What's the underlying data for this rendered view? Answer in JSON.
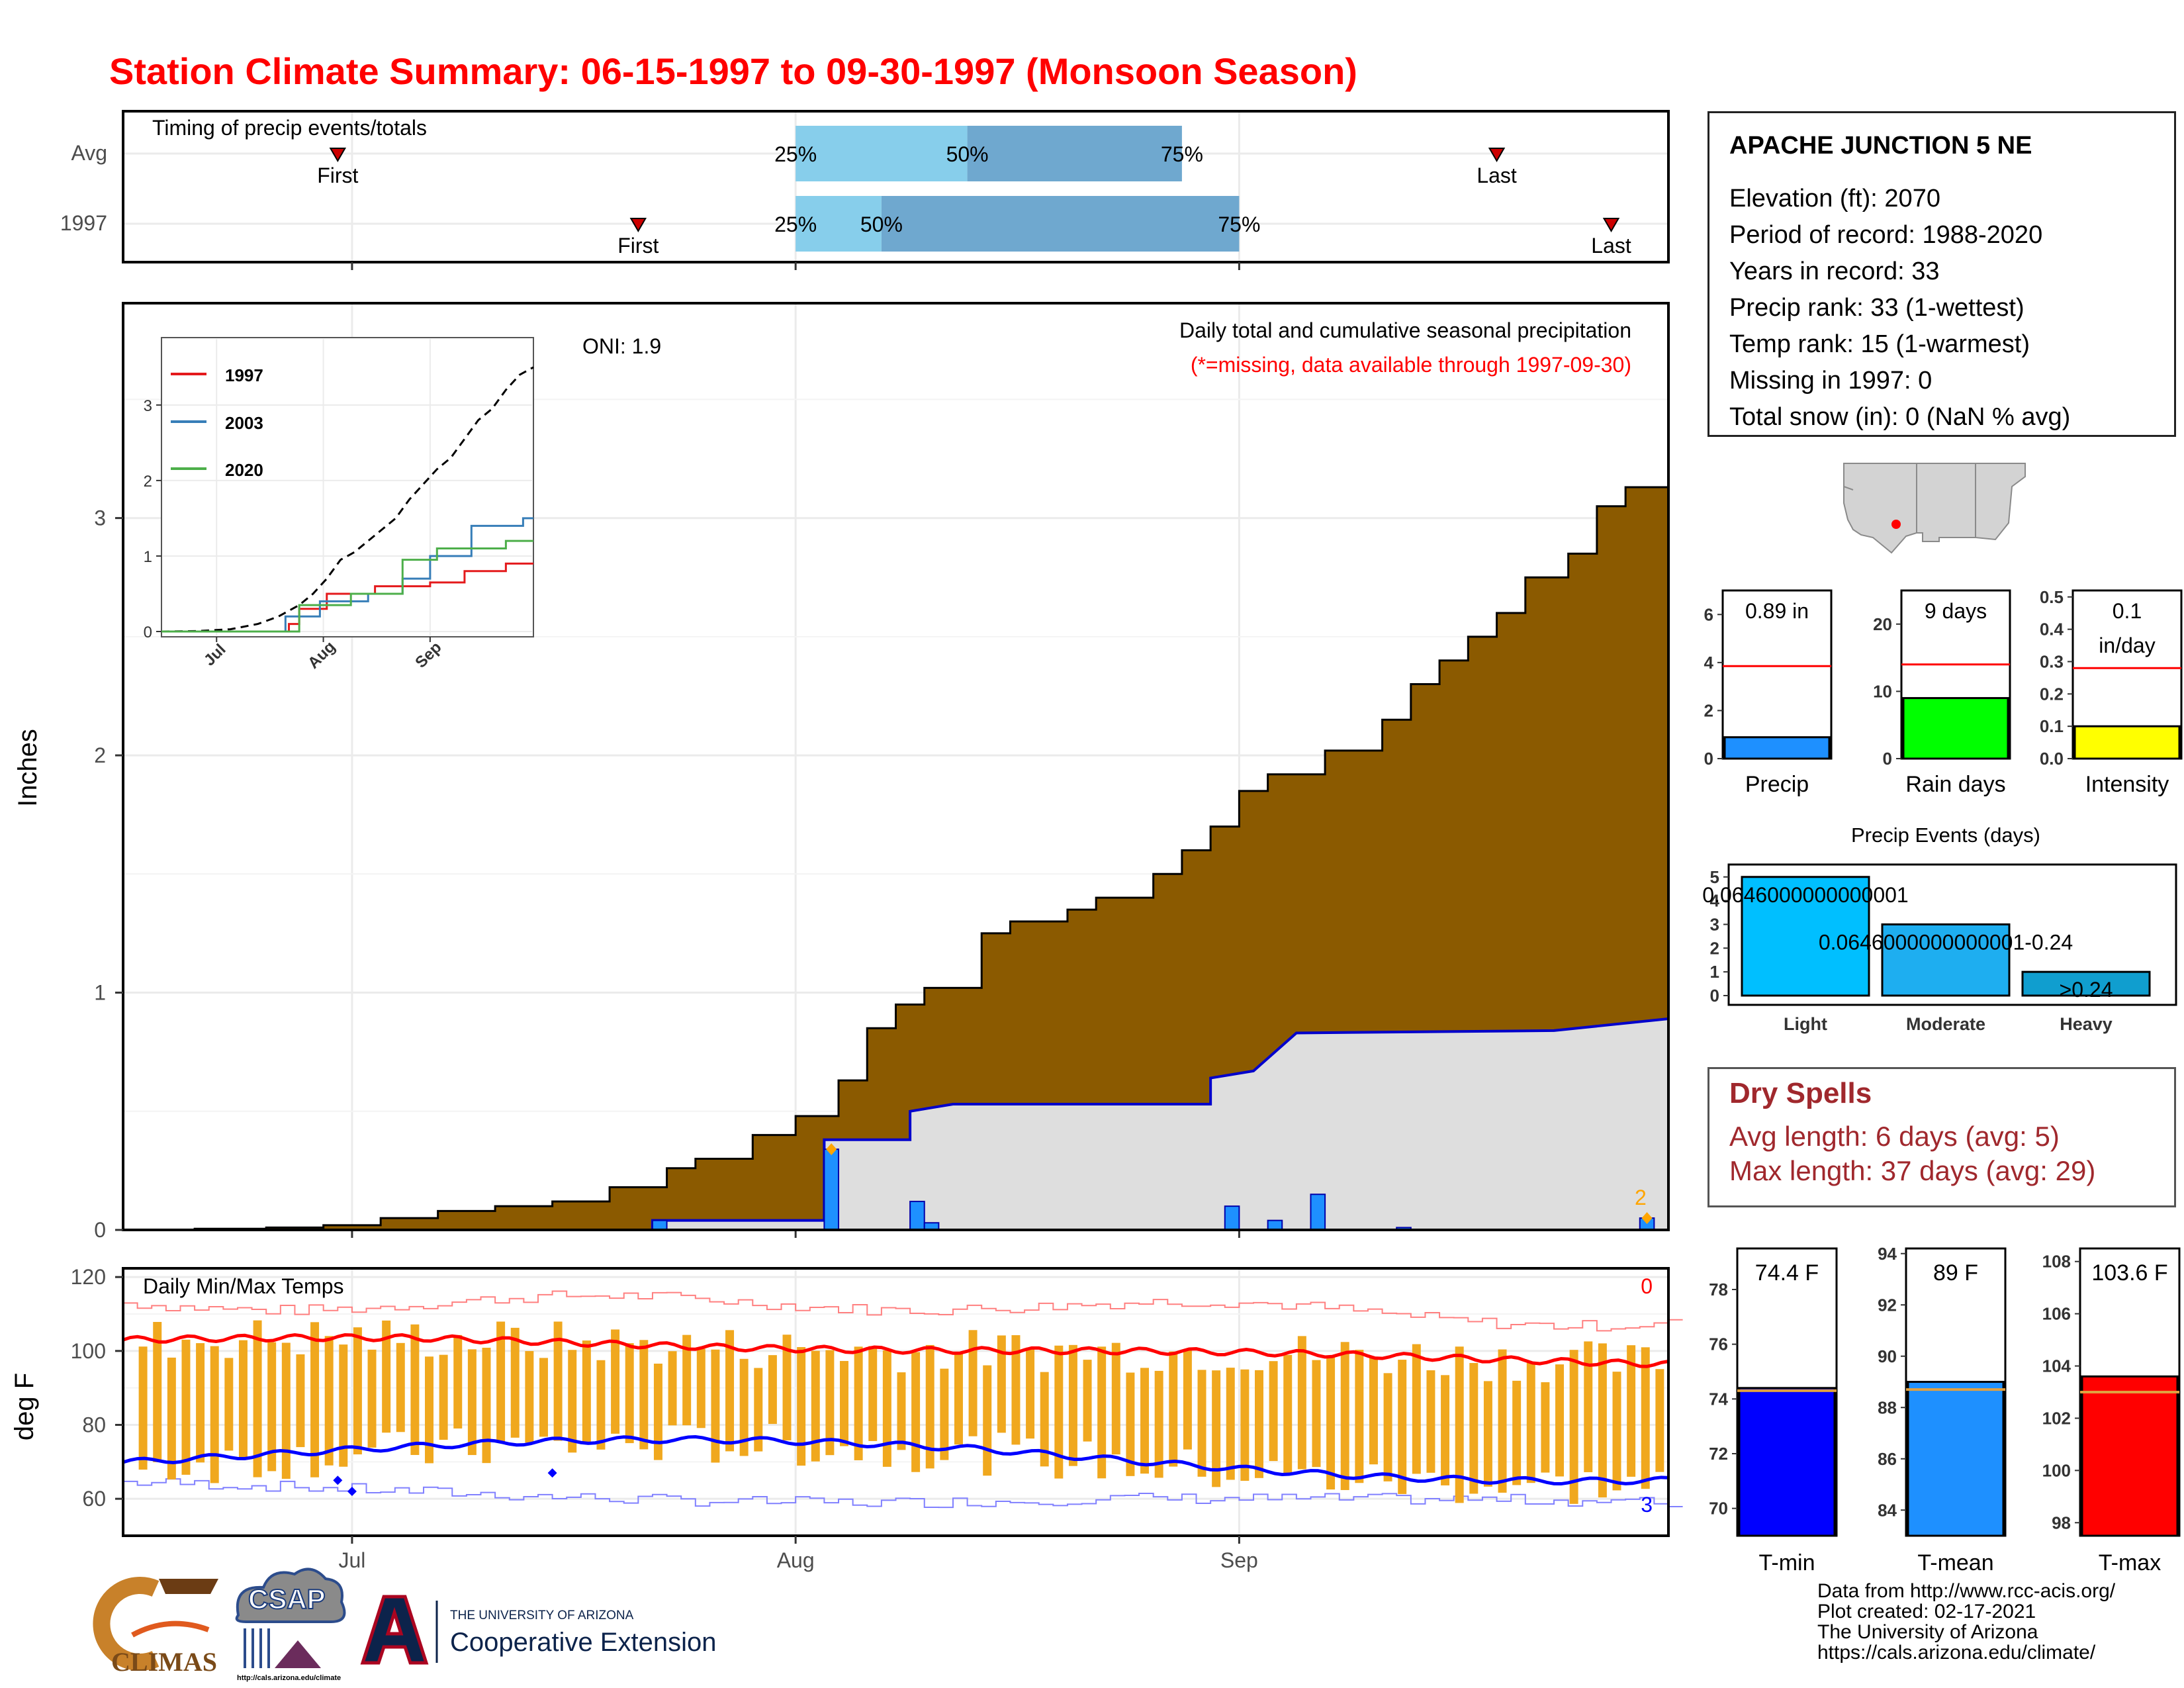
{
  "title": "Station Climate Summary: 06-15-1997 to 09-30-1997 (Monsoon Season)",
  "colors": {
    "title": "#ff0000",
    "cumulative_fill": "#8b5a00",
    "avg_band": "#dedede",
    "daily_bars": "#1e90ff",
    "tmax_avg": "#ff0000",
    "tmin_avg": "#0000ff",
    "temp_bars": "#f0a81e",
    "precip_bar": "#1e90ff",
    "raindays_bar": "#00ff00",
    "intensity_bar": "#ffff00",
    "tmin_bar": "#0000ff",
    "tmean_bar": "#1e90ff",
    "tmax_bar": "#ff0000",
    "events_bar_light": "#00bfff",
    "events_bar_moderate": "#1eaef0",
    "events_bar_heavy": "#109ecf",
    "dry_spell_text": "#a0282d"
  },
  "timing_panel": {
    "title": "Timing of precip events/totals",
    "row_labels": [
      "Avg",
      "1997"
    ],
    "first_label": "First",
    "last_label": "Last",
    "quantile_labels": [
      "25%",
      "50%",
      "75%"
    ],
    "rows": [
      {
        "name": "Avg",
        "first": "06-30",
        "last": "09-19",
        "q25": "08-01",
        "q50": "08-13",
        "q75": "08-28"
      },
      {
        "name": "1997",
        "first": "07-21",
        "last": "09-27",
        "q25": "08-01",
        "q50": "08-07",
        "q75": "09-01"
      }
    ]
  },
  "precip_panel": {
    "title": "Daily total and cumulative seasonal precipitation",
    "note": "(*=missing, data available through 1997-09-30)",
    "oni": "ONI: 1.9",
    "ylabel": "Inches",
    "y_ticks": [
      "0",
      "1",
      "2",
      "3"
    ],
    "ylim": [
      0,
      3.9
    ],
    "outlier_label": "2"
  },
  "temp_panel": {
    "title": "Daily Min/Max Temps",
    "ylabel": "deg F",
    "y_ticks": [
      "60",
      "80",
      "100",
      "120"
    ],
    "ylim": [
      50,
      122
    ],
    "x_ticks": [
      "Jul",
      "Aug",
      "Sep"
    ],
    "record_high_count": "0",
    "record_low_count": "3"
  },
  "inset": {
    "legend": [
      "1997",
      "2003",
      "2020"
    ],
    "legend_colors": [
      "#e41a1c",
      "#377eb8",
      "#4daf4a"
    ],
    "y_ticks": [
      "0",
      "1",
      "2",
      "3"
    ],
    "x_ticks": [
      "Jul",
      "Aug",
      "Sep"
    ]
  },
  "station": {
    "name": "APACHE JUNCTION 5 NE",
    "lines": [
      "Elevation (ft): 2070",
      "Period of record: 1988-2020",
      "Years in record: 33",
      "Precip rank: 33 (1-wettest)",
      "Temp rank: 15 (1-warmest)",
      "Missing in 1997: 0",
      "Total snow (in): 0 (NaN % avg)"
    ]
  },
  "summary_bars": {
    "precip": {
      "label": "Precip",
      "value_text": "0.89 in",
      "value": 0.89,
      "avg": 3.85,
      "ylim": [
        0,
        7
      ],
      "ticks": [
        "0",
        "2",
        "4",
        "6"
      ]
    },
    "rain_days": {
      "label": "Rain days",
      "value_text": "9 days",
      "value": 9,
      "avg": 14,
      "ylim": [
        0,
        25
      ],
      "ticks": [
        "0",
        "10",
        "20"
      ]
    },
    "intensity": {
      "label": "Intensity",
      "value_text_1": "0.1",
      "value_text_2": "in/day",
      "value": 0.1,
      "avg": 0.28,
      "ylim": [
        0,
        0.52
      ],
      "ticks": [
        "0.0",
        "0.1",
        "0.2",
        "0.3",
        "0.4",
        "0.5"
      ]
    }
  },
  "precip_events": {
    "title": "Precip Events (days)",
    "categories": [
      "Light",
      "Moderate",
      "Heavy"
    ],
    "values": [
      5,
      3,
      1
    ],
    "bar_labels": [
      "0.0646000000000001",
      "0.0646000000000001-0.24",
      ">0.24"
    ],
    "ticks": [
      "0",
      "1",
      "2",
      "3",
      "4",
      "5"
    ]
  },
  "dry_spells": {
    "title": "Dry Spells",
    "avg_length": "Avg length: 6 days (avg: 5)",
    "max_length": "Max length: 37 days (avg: 29)"
  },
  "temp_bars": {
    "tmin": {
      "label": "T-min",
      "value_text": "74.4 F",
      "value": 74.4,
      "avg": 74.3,
      "ylim": [
        69,
        79.5
      ],
      "ticks": [
        "70",
        "72",
        "74",
        "76",
        "78"
      ]
    },
    "tmean": {
      "label": "T-mean",
      "value_text": "89 F",
      "value": 89.0,
      "avg": 88.7,
      "ylim": [
        83,
        94.2
      ],
      "ticks": [
        "84",
        "86",
        "88",
        "90",
        "92",
        "94"
      ]
    },
    "tmax": {
      "label": "T-max",
      "value_text": "103.6 F",
      "value": 103.6,
      "avg": 103.0,
      "ylim": [
        97.5,
        108.5
      ],
      "ticks": [
        "98",
        "100",
        "102",
        "104",
        "106",
        "108"
      ]
    }
  },
  "logos": {
    "climas": "CLIMAS",
    "csap": "CSAP",
    "csap_url": "http://cals.arizona.edu/climate",
    "ua_small": "THE UNIVERSITY OF ARIZONA",
    "ua_big": "Cooperative Extension"
  },
  "credits": [
    "Data from http://www.rcc-acis.org/",
    "Plot created: 02-17-2021",
    "The University of Arizona",
    "https://cals.arizona.edu/climate/"
  ],
  "chart_data": [
    {
      "type": "area",
      "title": "Daily total and cumulative seasonal precipitation",
      "ylabel": "Inches",
      "ylim": [
        0,
        3.9
      ],
      "x_range": [
        "06-15",
        "09-30"
      ],
      "series": [
        {
          "name": "cumulative average",
          "step_points": [
            [
              0,
              0
            ],
            [
              5,
              0.005
            ],
            [
              10,
              0.01
            ],
            [
              14,
              0.02
            ],
            [
              18,
              0.05
            ],
            [
              22,
              0.08
            ],
            [
              26,
              0.1
            ],
            [
              30,
              0.12
            ],
            [
              34,
              0.18
            ],
            [
              38,
              0.26
            ],
            [
              40,
              0.3
            ],
            [
              44,
              0.4
            ],
            [
              47,
              0.48
            ],
            [
              50,
              0.63
            ],
            [
              52,
              0.85
            ],
            [
              54,
              0.95
            ],
            [
              56,
              1.02
            ],
            [
              60,
              1.25
            ],
            [
              62,
              1.3
            ],
            [
              66,
              1.35
            ],
            [
              68,
              1.4
            ],
            [
              72,
              1.5
            ],
            [
              74,
              1.6
            ],
            [
              76,
              1.7
            ],
            [
              78,
              1.85
            ],
            [
              80,
              1.92
            ],
            [
              84,
              2.02
            ],
            [
              88,
              2.15
            ],
            [
              90,
              2.3
            ],
            [
              92,
              2.4
            ],
            [
              94,
              2.5
            ],
            [
              96,
              2.6
            ],
            [
              98,
              2.75
            ],
            [
              101,
              2.85
            ],
            [
              103,
              3.05
            ],
            [
              105,
              3.13
            ],
            [
              109,
              3.2
            ],
            [
              112,
              3.25
            ],
            [
              114,
              3.34
            ],
            [
              119,
              3.4
            ],
            [
              122,
              3.5
            ],
            [
              126,
              3.52
            ],
            [
              128,
              3.64
            ],
            [
              131,
              3.64
            ]
          ]
        },
        {
          "name": "1997 cumulative",
          "step_points": [
            [
              0,
              0
            ],
            [
              37,
              0
            ],
            [
              37,
              0.04
            ],
            [
              49,
              0.04
            ],
            [
              49,
              0.38
            ],
            [
              55,
              0.38
            ],
            [
              55,
              0.5
            ],
            [
              58,
              0.53
            ],
            [
              76,
              0.53
            ],
            [
              76,
              0.64
            ],
            [
              79,
              0.67
            ],
            [
              82,
              0.83
            ],
            [
              100,
              0.84
            ],
            [
              130,
              0.89
            ]
          ]
        }
      ],
      "daily_precip_1997": [
        [
          "07-22",
          0.04
        ],
        [
          "08-03",
          0.34
        ],
        [
          "08-09",
          0.12
        ],
        [
          "08-10",
          0.03
        ],
        [
          "08-31",
          0.1
        ],
        [
          "09-03",
          0.04
        ],
        [
          "09-06",
          0.15
        ],
        [
          "09-12",
          0.01
        ],
        [
          "09-29",
          0.05
        ]
      ]
    },
    {
      "type": "line",
      "title": "Daily Min/Max Temps",
      "ylabel": "deg F",
      "ylim": [
        50,
        122
      ],
      "series": [
        {
          "name": "average max",
          "range": [
            103,
            97
          ]
        },
        {
          "name": "average min",
          "range": [
            72,
            67
          ]
        },
        {
          "name": "1997 daily range",
          "typical": [
            68,
            104
          ]
        }
      ]
    },
    {
      "type": "line",
      "title": "inset cumulative precipitation",
      "series": [
        {
          "name": "1997",
          "final": 0.89
        },
        {
          "name": "2003",
          "final": 1.4
        },
        {
          "name": "2020",
          "final": 1.2
        },
        {
          "name": "average",
          "final": 3.7
        }
      ]
    }
  ]
}
